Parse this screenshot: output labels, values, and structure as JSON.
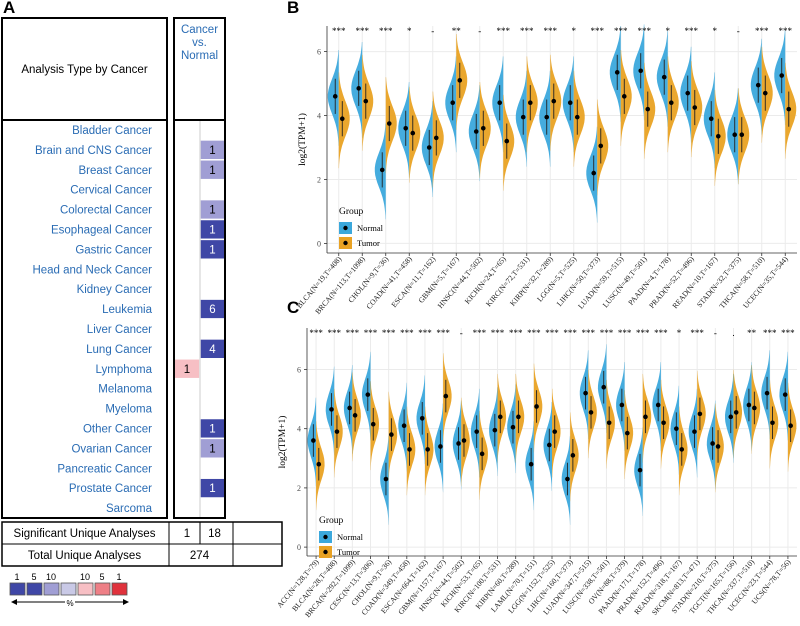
{
  "panel_labels": {
    "a": "A",
    "b": "B",
    "c": "C"
  },
  "oncomine": {
    "header_left": "Analysis Type by Cancer",
    "header_right_lines": [
      "Cancer",
      "vs.",
      "Normal"
    ],
    "cancers": [
      {
        "name": "Bladder Cancer",
        "down": "",
        "up": "",
        "down_shade": 0,
        "up_shade": 0
      },
      {
        "name": "Brain and CNS Cancer",
        "down": "",
        "up": "1",
        "down_shade": 0,
        "up_shade": 2
      },
      {
        "name": "Breast Cancer",
        "down": "",
        "up": "1",
        "down_shade": 0,
        "up_shade": 2
      },
      {
        "name": "Cervical Cancer",
        "down": "",
        "up": "",
        "down_shade": 0,
        "up_shade": 0
      },
      {
        "name": "Colorectal Cancer",
        "down": "",
        "up": "1",
        "down_shade": 0,
        "up_shade": 2
      },
      {
        "name": "Esophageal Cancer",
        "down": "",
        "up": "1",
        "down_shade": 0,
        "up_shade": 4
      },
      {
        "name": "Gastric Cancer",
        "down": "",
        "up": "1",
        "down_shade": 0,
        "up_shade": 4
      },
      {
        "name": "Head and Neck Cancer",
        "down": "",
        "up": "",
        "down_shade": 0,
        "up_shade": 0
      },
      {
        "name": "Kidney Cancer",
        "down": "",
        "up": "",
        "down_shade": 0,
        "up_shade": 0
      },
      {
        "name": "Leukemia",
        "down": "",
        "up": "6",
        "down_shade": 0,
        "up_shade": 4
      },
      {
        "name": "Liver Cancer",
        "down": "",
        "up": "",
        "down_shade": 0,
        "up_shade": 0
      },
      {
        "name": "Lung Cancer",
        "down": "",
        "up": "4",
        "down_shade": 0,
        "up_shade": 4
      },
      {
        "name": "Lymphoma",
        "down": "1",
        "up": "",
        "down_shade": 1,
        "up_shade": 0
      },
      {
        "name": "Melanoma",
        "down": "",
        "up": "",
        "down_shade": 0,
        "up_shade": 0
      },
      {
        "name": "Myeloma",
        "down": "",
        "up": "",
        "down_shade": 0,
        "up_shade": 0
      },
      {
        "name": "Other Cancer",
        "down": "",
        "up": "1",
        "down_shade": 0,
        "up_shade": 4
      },
      {
        "name": "Ovarian Cancer",
        "down": "",
        "up": "1",
        "down_shade": 0,
        "up_shade": 2
      },
      {
        "name": "Pancreatic Cancer",
        "down": "",
        "up": "",
        "down_shade": 0,
        "up_shade": 0
      },
      {
        "name": "Prostate Cancer",
        "down": "",
        "up": "1",
        "down_shade": 0,
        "up_shade": 4
      },
      {
        "name": "Sarcoma",
        "down": "",
        "up": "",
        "down_shade": 0,
        "up_shade": 0
      }
    ],
    "significant_label": "Significant Unique Analyses",
    "significant_down": "1",
    "significant_up": "18",
    "total_label": "Total Unique Analyses",
    "total": "274",
    "legend_numbers": [
      "1",
      "5",
      "10",
      "10",
      "5",
      "1"
    ],
    "legend_unit": "%",
    "colors": {
      "up_light": "#c9c9e6",
      "up_mid": "#a09ed4",
      "up_dark": "#3f47a6",
      "down_light": "#f7bfc4",
      "down_dark": "#e0323c",
      "link": "#2a6cb4"
    }
  },
  "chart_data": [
    {
      "type": "split_violin",
      "panel": "B",
      "ylabel": "log2(TPM+1)",
      "ylim": [
        -0.3,
        6.8
      ],
      "yticks": [
        0,
        2,
        4,
        6
      ],
      "legend": {
        "title": "Group",
        "entries": [
          "Normal",
          "Tumor"
        ],
        "position": "bottom-left"
      },
      "colors": {
        "Normal": "#3ba8dc",
        "Tumor": "#e9a223"
      },
      "categories": [
        "BLCA(N=19,T=408)",
        "BRCA(N=113,T=1098)",
        "CHOL(N=9,T=36)",
        "COAD(N=41,T=458)",
        "ESCA(N=11,T=162)",
        "GBM(N=5,T=167)",
        "HNSC(N=44,T=502)",
        "KICH(N=24,T=65)",
        "KIRC(N=72,T=531)",
        "KIRP(N=32,T=289)",
        "LGG(N=5,T=525)",
        "LIHC(N=50,T=373)",
        "LUAD(N=59,T=515)",
        "LUSC(N=49,T=501)",
        "PAAD(N=4,T=178)",
        "PRAD(N=52,T=496)",
        "READ(N=10,T=167)",
        "STAD(N=32,T=375)",
        "THCA(N=58,T=510)",
        "UCEC(N=35,T=544)"
      ],
      "significance": [
        "***",
        "***",
        "***",
        "*",
        "-",
        "**",
        "-",
        "***",
        "***",
        "***",
        "*",
        "***",
        "***",
        "***",
        "*",
        "***",
        "*",
        "-",
        "***",
        "***"
      ],
      "series": [
        {
          "name": "Normal",
          "values": [
            4.6,
            4.85,
            2.3,
            3.6,
            3.0,
            4.4,
            3.5,
            4.4,
            3.95,
            3.95,
            4.4,
            2.2,
            5.35,
            5.4,
            5.2,
            4.7,
            3.9,
            3.4,
            4.95,
            5.25
          ]
        },
        {
          "name": "Tumor",
          "values": [
            3.9,
            4.45,
            3.75,
            3.45,
            3.3,
            5.1,
            3.6,
            3.2,
            4.4,
            4.45,
            3.95,
            3.05,
            4.6,
            4.2,
            4.4,
            4.25,
            3.35,
            3.4,
            4.7,
            4.2
          ]
        }
      ]
    },
    {
      "type": "split_violin",
      "panel": "C",
      "ylabel": "log2(TPM+1)",
      "ylim": [
        -0.3,
        7.4
      ],
      "yticks": [
        0,
        2,
        4,
        6
      ],
      "legend": {
        "title": "Group",
        "entries": [
          "Normal",
          "Tumor"
        ],
        "position": "bottom-left"
      },
      "colors": {
        "Normal": "#3ba8dc",
        "Tumor": "#e9a223"
      },
      "categories": [
        "ACC(N=128,T=79)",
        "BLCA(N=28,T=408)",
        "BRCA(N=292,T=1099)",
        "CESC(N=13,T=306)",
        "CHOL(N=9,T=36)",
        "COAD(N=349,T=458)",
        "ESCA(N=664,T=162)",
        "GBM(N=1157,T=167)",
        "HNSC(N=44,T=502)",
        "KICH(N=53,T=65)",
        "KIRC(N=100,T=531)",
        "KIRP(N=60,T=289)",
        "LAML(N=70,T=151)",
        "LGG(N=1152,T=525)",
        "LIHC(N=160,T=373)",
        "LUAD(N=347,T=515)",
        "LUSC(N=338,T=501)",
        "OV(N=88,T=379)",
        "PAAD(N=171,T=178)",
        "PRAD(N=152,T=496)",
        "READ(N=318,T=167)",
        "SKCM(N=813,T=471)",
        "STAD(N=210,T=375)",
        "TGCT(N=165,T=156)",
        "THCA(N=337,T=510)",
        "UCEC(N=23,T=544)",
        "UCS(N=78,T=56)"
      ],
      "significance": [
        "***",
        "***",
        "***",
        "***",
        "***",
        "***",
        "***",
        "***",
        "-",
        "***",
        "***",
        "***",
        "***",
        "***",
        "***",
        "***",
        "***",
        "***",
        "***",
        "***",
        "*",
        "***",
        "-",
        ".",
        "**",
        "***",
        "***"
      ],
      "series": [
        {
          "name": "Normal",
          "values": [
            3.6,
            4.65,
            4.7,
            5.15,
            2.3,
            4.1,
            4.35,
            3.4,
            3.5,
            3.9,
            3.95,
            4.05,
            2.8,
            3.45,
            2.3,
            5.2,
            5.4,
            4.8,
            2.6,
            4.8,
            4.0,
            3.9,
            3.5,
            4.4,
            4.8,
            5.2,
            5.15
          ]
        },
        {
          "name": "Tumor",
          "values": [
            2.8,
            3.9,
            4.45,
            4.15,
            3.8,
            3.3,
            3.3,
            5.1,
            3.6,
            3.15,
            4.4,
            4.4,
            4.75,
            3.9,
            3.1,
            4.55,
            4.2,
            3.85,
            4.4,
            4.2,
            3.3,
            4.5,
            3.4,
            4.55,
            4.7,
            4.2,
            4.1
          ]
        }
      ]
    }
  ]
}
